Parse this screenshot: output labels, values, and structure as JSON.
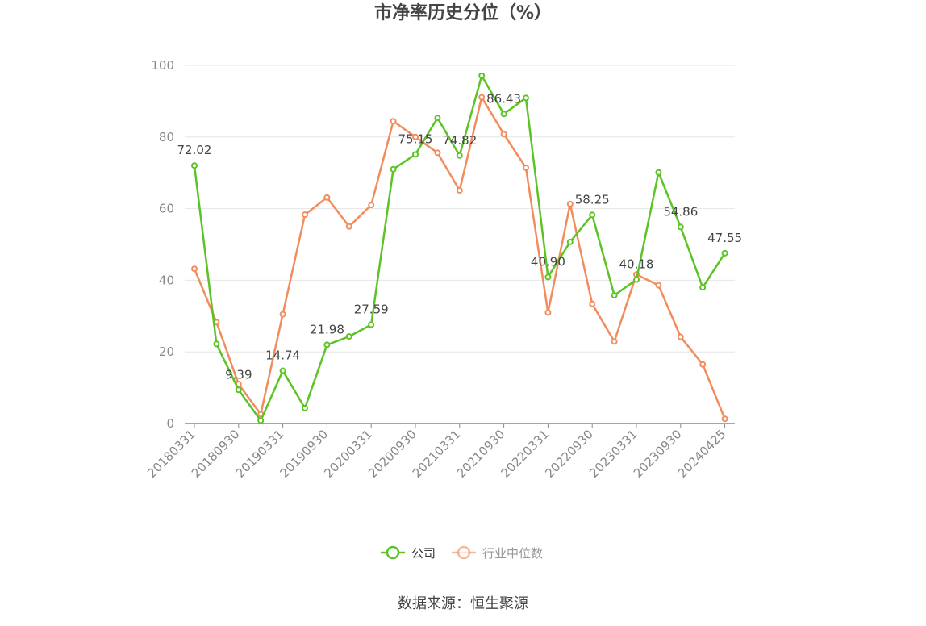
{
  "title": "市净率历史分位（%）",
  "source": "数据来源：恒生聚源",
  "chart_data": {
    "type": "line",
    "title": "市净率历史分位（%）",
    "xlabel": "",
    "ylabel": "",
    "ylim": [
      0,
      100
    ],
    "y_ticks": [
      0,
      20,
      40,
      60,
      80,
      100
    ],
    "grid": true,
    "legend_position": "bottom",
    "x_tick_labels": [
      "20180331",
      "20180930",
      "20190331",
      "20190930",
      "20200331",
      "20200930",
      "20210331",
      "20210930",
      "20220331",
      "20220930",
      "20230331",
      "20230930",
      "20240425"
    ],
    "x": [
      "20180331",
      "20180630",
      "20180930",
      "20181231",
      "20190331",
      "20190630",
      "20190930",
      "20191231",
      "20200331",
      "20200630",
      "20200930",
      "20201231",
      "20210331",
      "20210630",
      "20210930",
      "20211231",
      "20220331",
      "20220630",
      "20220930",
      "20221231",
      "20230331",
      "20230630",
      "20230930",
      "20231231",
      "20240425"
    ],
    "series": [
      {
        "name": "公司",
        "color": "#5bc424",
        "values": [
          72.02,
          22.2,
          9.39,
          0.8,
          14.74,
          4.3,
          21.98,
          24.3,
          27.59,
          71.0,
          75.15,
          85.3,
          74.82,
          97.1,
          86.43,
          90.9,
          40.9,
          50.7,
          58.25,
          35.8,
          40.18,
          70.1,
          54.86,
          38.0,
          47.55
        ],
        "labels": {
          "0": "72.02",
          "2": "9.39",
          "4": "14.74",
          "6": "21.98",
          "8": "27.59",
          "10": "75.15",
          "12": "74.82",
          "14": "86.43",
          "16": "40.90",
          "18": "58.25",
          "20": "40.18",
          "22": "54.86",
          "24": "47.55"
        }
      },
      {
        "name": "行业中位数",
        "color": "#f28c5c",
        "values": [
          43.2,
          28.3,
          11.0,
          2.6,
          30.5,
          58.3,
          63.1,
          55.0,
          61.0,
          84.4,
          80.0,
          75.6,
          65.1,
          91.1,
          80.8,
          71.4,
          31.0,
          61.3,
          33.4,
          22.9,
          41.6,
          38.6,
          24.2,
          16.5,
          1.3
        ],
        "labels": {}
      }
    ]
  }
}
